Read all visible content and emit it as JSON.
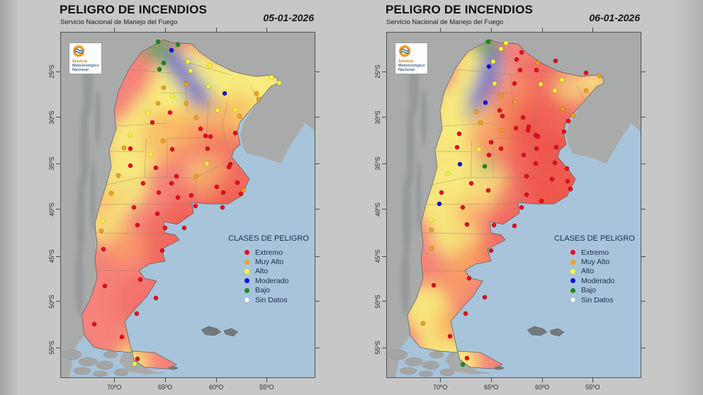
{
  "legend": {
    "title": "CLASES DE PELIGRO",
    "items": [
      {
        "label": "Extremo",
        "class_key": "extremo"
      },
      {
        "label": "Muy Alto",
        "class_key": "muy_alto"
      },
      {
        "label": "Alto",
        "class_key": "alto"
      },
      {
        "label": "Moderado",
        "class_key": "moderado"
      },
      {
        "label": "Bajo",
        "class_key": "bajo"
      },
      {
        "label": "Sin Datos",
        "class_key": "sin_datos"
      }
    ]
  },
  "logo": {
    "line1": "Servicio",
    "line2": "Meteorológico",
    "line3": "Nacional"
  },
  "colors": {
    "extremo": "#e60d1c",
    "muy_alto": "#f2a21b",
    "alto": "#fcfc33",
    "moderado": "#1212d8",
    "bajo": "#1d8a1d",
    "sin_datos": "#ffffff",
    "ocean": "#a8c4db",
    "neighbor_land": "#a9abaa",
    "island_dark": "#75787a",
    "frame": "#4f5355",
    "field_base": "#f5837b",
    "f_yellow": "#f7ef7d",
    "f_orange": "#f9a55c",
    "f_red": "#ee5146",
    "f_green": "#68a55f",
    "f_blue": "#6767d2"
  },
  "axes": {
    "lat": {
      "labels": [
        "25ºS",
        "30ºS",
        "35ºS",
        "40ºS",
        "45ºS",
        "50ºS",
        "55ºS"
      ],
      "pos_pct": [
        11.3,
        24.6,
        38.0,
        51.3,
        64.9,
        78.0,
        91.4
      ]
    },
    "lon": {
      "labels": [
        "70ºO",
        "65ºO",
        "60ºO",
        "55ºO"
      ],
      "pos_pct": [
        21.0,
        41.1,
        61.2,
        81.1
      ]
    }
  },
  "panels": [
    {
      "title": "PELIGRO DE INCENDIOS",
      "subtitle": "Servicio Nacional de Manejo del Fuego",
      "date": "05-01-2026",
      "field_blobs": [
        [
          180,
          75,
          55,
          "f_yellow",
          0.95
        ],
        [
          245,
          85,
          52,
          "f_yellow",
          0.95
        ],
        [
          295,
          70,
          24,
          "f_yellow",
          0.9
        ],
        [
          278,
          92,
          18,
          "f_yellow",
          0.85
        ],
        [
          300,
          112,
          40,
          "f_yellow",
          0.85
        ],
        [
          140,
          120,
          45,
          "f_yellow",
          0.85
        ],
        [
          105,
          158,
          45,
          "f_yellow",
          0.9
        ],
        [
          85,
          215,
          40,
          "f_yellow",
          0.85
        ],
        [
          62,
          268,
          32,
          "f_yellow",
          0.8
        ],
        [
          207,
          200,
          28,
          "f_yellow",
          0.7
        ],
        [
          100,
          468,
          24,
          "f_yellow",
          0.95
        ],
        [
          150,
          148,
          38,
          "f_orange",
          0.6
        ],
        [
          205,
          128,
          42,
          "f_orange",
          0.5
        ],
        [
          252,
          122,
          36,
          "f_orange",
          0.5
        ],
        [
          90,
          300,
          28,
          "f_orange",
          0.55
        ],
        [
          110,
          432,
          20,
          "f_orange",
          0.8
        ],
        [
          60,
          240,
          20,
          "f_orange",
          0.4
        ],
        [
          170,
          300,
          55,
          "f_red",
          0.5
        ],
        [
          250,
          278,
          58,
          "f_red",
          0.45
        ],
        [
          225,
          332,
          45,
          "f_red",
          0.4
        ],
        [
          258,
          220,
          40,
          "f_red",
          0.35
        ],
        [
          200,
          252,
          48,
          "f_red",
          0.35
        ],
        [
          115,
          380,
          40,
          "f_red",
          0.3
        ],
        [
          230,
          180,
          40,
          "f_red",
          0.3
        ],
        [
          138,
          22,
          20,
          "f_green",
          0.95
        ],
        [
          152,
          40,
          13,
          "f_green",
          0.85
        ],
        [
          160,
          38,
          14,
          "f_blue",
          0.9
        ],
        [
          172,
          57,
          17,
          "f_blue",
          0.9
        ],
        [
          190,
          82,
          18,
          "f_blue",
          0.85
        ],
        [
          203,
          99,
          13,
          "f_blue",
          0.6
        ]
      ],
      "stations": {
        "alto": [
          [
            179,
            41
          ],
          [
            210,
            47
          ],
          [
            183,
            54
          ],
          [
            208,
            76
          ],
          [
            297,
            63
          ],
          [
            308,
            71
          ],
          [
            157,
            90
          ],
          [
            221,
            110
          ],
          [
            246,
            109
          ],
          [
            123,
            113
          ],
          [
            98,
            145
          ],
          [
            127,
            172
          ],
          [
            206,
            185
          ],
          [
            59,
            266
          ],
          [
            104,
            468
          ]
        ],
        "muy_alto": [
          [
            145,
            78
          ],
          [
            177,
            73
          ],
          [
            177,
            100
          ],
          [
            137,
            100
          ],
          [
            191,
            120
          ],
          [
            252,
            118
          ],
          [
            276,
            86
          ],
          [
            279,
            94
          ],
          [
            144,
            153
          ],
          [
            89,
            163
          ],
          [
            81,
            202
          ],
          [
            71,
            227
          ],
          [
            191,
            203
          ],
          [
            258,
            223
          ],
          [
            57,
            280
          ]
        ],
        "extremo": [
          [
            154,
            113
          ],
          [
            129,
            127
          ],
          [
            197,
            136
          ],
          [
            246,
            142
          ],
          [
            204,
            146
          ],
          [
            211,
            147
          ],
          [
            98,
            164
          ],
          [
            157,
            165
          ],
          [
            207,
            164
          ],
          [
            98,
            188
          ],
          [
            134,
            191
          ],
          [
            163,
            203
          ],
          [
            116,
            213
          ],
          [
            138,
            226
          ],
          [
            156,
            213
          ],
          [
            184,
            230
          ],
          [
            165,
            233
          ],
          [
            220,
            218
          ],
          [
            229,
            226
          ],
          [
            239,
            186
          ],
          [
            237,
            190
          ],
          [
            249,
            212
          ],
          [
            254,
            228
          ],
          [
            228,
            247
          ],
          [
            190,
            245
          ],
          [
            136,
            256
          ],
          [
            103,
            247
          ],
          [
            108,
            272
          ],
          [
            147,
            276
          ],
          [
            174,
            276
          ],
          [
            60,
            306
          ],
          [
            143,
            308
          ],
          [
            62,
            358
          ],
          [
            112,
            349
          ],
          [
            134,
            375
          ],
          [
            107,
            397
          ],
          [
            47,
            412
          ],
          [
            86,
            430
          ],
          [
            108,
            461
          ]
        ],
        "moderado": [
          [
            156,
            25
          ],
          [
            231,
            86
          ]
        ],
        "bajo": [
          [
            137,
            13
          ],
          [
            165,
            17
          ],
          [
            145,
            43
          ],
          [
            139,
            52
          ]
        ],
        "sin_datos": []
      }
    },
    {
      "title": "PELIGRO DE INCENDIOS",
      "subtitle": "Servicio Nacional de Manejo del Fuego",
      "date": "06-01-2026",
      "field_blobs": [
        [
          130,
          50,
          36,
          "f_yellow",
          0.95
        ],
        [
          105,
          110,
          42,
          "f_yellow",
          0.95
        ],
        [
          85,
          170,
          42,
          "f_yellow",
          0.9
        ],
        [
          75,
          235,
          40,
          "f_yellow",
          0.9
        ],
        [
          95,
          285,
          35,
          "f_yellow",
          0.85
        ],
        [
          130,
          215,
          38,
          "f_yellow",
          0.8
        ],
        [
          295,
          70,
          22,
          "f_yellow",
          0.8
        ],
        [
          340,
          120,
          26,
          "f_yellow",
          0.8
        ],
        [
          255,
          78,
          24,
          "f_yellow",
          0.6
        ],
        [
          55,
          390,
          35,
          "f_yellow",
          0.9
        ],
        [
          75,
          440,
          32,
          "f_yellow",
          0.9
        ],
        [
          105,
          465,
          26,
          "f_yellow",
          0.95
        ],
        [
          150,
          140,
          38,
          "f_orange",
          0.6
        ],
        [
          120,
          320,
          28,
          "f_orange",
          0.6
        ],
        [
          95,
          350,
          28,
          "f_orange",
          0.6
        ],
        [
          185,
          95,
          32,
          "f_orange",
          0.45
        ],
        [
          90,
          415,
          26,
          "f_orange",
          0.6
        ],
        [
          115,
          255,
          25,
          "f_orange",
          0.4
        ],
        [
          230,
          140,
          52,
          "f_red",
          0.6
        ],
        [
          252,
          200,
          58,
          "f_red",
          0.65
        ],
        [
          255,
          262,
          62,
          "f_red",
          0.6
        ],
        [
          230,
          312,
          52,
          "f_red",
          0.55
        ],
        [
          192,
          250,
          48,
          "f_red",
          0.4
        ],
        [
          205,
          172,
          45,
          "f_red",
          0.45
        ],
        [
          218,
          62,
          32,
          "f_red",
          0.4
        ],
        [
          168,
          302,
          40,
          "f_red",
          0.35
        ],
        [
          190,
          120,
          35,
          "f_red",
          0.3
        ],
        [
          140,
          18,
          18,
          "f_green",
          0.95
        ],
        [
          140,
          190,
          11,
          "f_green",
          0.5
        ],
        [
          150,
          38,
          14,
          "f_blue",
          0.9
        ],
        [
          143,
          62,
          18,
          "f_blue",
          0.9
        ],
        [
          130,
          90,
          16,
          "f_blue",
          0.85
        ],
        [
          120,
          110,
          11,
          "f_blue",
          0.6
        ]
      ],
      "stations": {
        "alto": [
          [
            168,
            15
          ],
          [
            161,
            23
          ],
          [
            150,
            41
          ],
          [
            152,
            72
          ],
          [
            217,
            73
          ],
          [
            247,
            67
          ],
          [
            237,
            82
          ],
          [
            130,
            165
          ],
          [
            86,
            199
          ],
          [
            63,
            265
          ]
        ],
        "muy_alto": [
          [
            213,
            43
          ],
          [
            300,
            61
          ],
          [
            281,
            82
          ],
          [
            161,
            89
          ],
          [
            181,
            98
          ],
          [
            126,
            112
          ],
          [
            132,
            127
          ],
          [
            248,
            108
          ],
          [
            263,
            117
          ],
          [
            162,
            138
          ],
          [
            63,
            279
          ],
          [
            63,
            305
          ],
          [
            51,
            411
          ]
        ],
        "extremo": [
          [
            183,
            38
          ],
          [
            188,
            53
          ],
          [
            180,
            72
          ],
          [
            211,
            53
          ],
          [
            281,
            57
          ],
          [
            238,
            40
          ],
          [
            190,
            28
          ],
          [
            159,
            110
          ],
          [
            163,
            118
          ],
          [
            182,
            135
          ],
          [
            192,
            120
          ],
          [
            200,
            133
          ],
          [
            199,
            138
          ],
          [
            210,
            145
          ],
          [
            213,
            147
          ],
          [
            239,
            162
          ],
          [
            250,
            140
          ],
          [
            256,
            125
          ],
          [
            102,
            143
          ],
          [
            99,
            162
          ],
          [
            147,
            155
          ],
          [
            161,
            164
          ],
          [
            211,
            164
          ],
          [
            144,
            173
          ],
          [
            119,
            213
          ],
          [
            143,
            223
          ],
          [
            107,
            247
          ],
          [
            113,
            271
          ],
          [
            77,
            226
          ],
          [
            151,
            272
          ],
          [
            180,
            273
          ],
          [
            193,
            173
          ],
          [
            210,
            185
          ],
          [
            237,
            184
          ],
          [
            197,
            203
          ],
          [
            233,
            207
          ],
          [
            255,
            210
          ],
          [
            197,
            229
          ],
          [
            218,
            238
          ],
          [
            190,
            247
          ],
          [
            147,
            308
          ],
          [
            254,
            192
          ],
          [
            259,
            221
          ],
          [
            66,
            357
          ],
          [
            116,
            347
          ],
          [
            138,
            374
          ],
          [
            111,
            397
          ],
          [
            89,
            429
          ],
          [
            113,
            460
          ]
        ],
        "moderado": [
          [
            144,
            48
          ],
          [
            139,
            99
          ],
          [
            103,
            186
          ],
          [
            74,
            242
          ]
        ],
        "bajo": [
          [
            143,
            13
          ],
          [
            138,
            189
          ],
          [
            107,
            469
          ]
        ],
        "sin_datos": []
      }
    }
  ]
}
